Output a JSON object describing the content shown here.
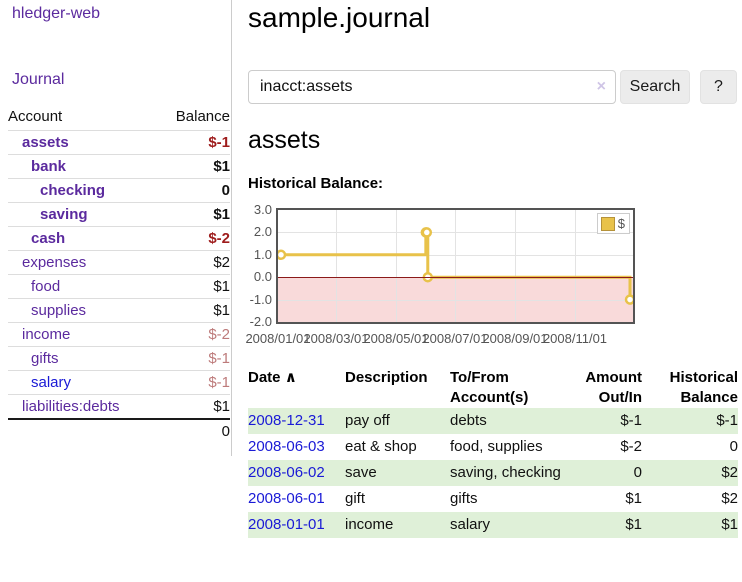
{
  "app": {
    "brand": "hledger-web"
  },
  "sidebar": {
    "journal_label": "Journal",
    "accounts_table": {
      "col_account": "Account",
      "col_balance": "Balance",
      "rows": [
        {
          "name": "assets",
          "balance": "$-1",
          "depth": 0,
          "bold": true,
          "link": "purple",
          "bal_style": "neg-strong"
        },
        {
          "name": "bank",
          "balance": "$1",
          "depth": 1,
          "bold": true,
          "link": "purple",
          "bal_style": "pos"
        },
        {
          "name": "checking",
          "balance": "0",
          "depth": 2,
          "bold": true,
          "link": "purple",
          "bal_style": "pos"
        },
        {
          "name": "saving",
          "balance": "$1",
          "depth": 2,
          "bold": true,
          "link": "purple",
          "bal_style": "pos"
        },
        {
          "name": "cash",
          "balance": "$-2",
          "depth": 1,
          "bold": true,
          "link": "purple",
          "bal_style": "neg-strong"
        },
        {
          "name": "expenses",
          "balance": "$2",
          "depth": 0,
          "bold": false,
          "link": "purple",
          "bal_style": "pos"
        },
        {
          "name": "food",
          "balance": "$1",
          "depth": 1,
          "bold": false,
          "link": "purple",
          "bal_style": "pos"
        },
        {
          "name": "supplies",
          "balance": "$1",
          "depth": 1,
          "bold": false,
          "link": "purple",
          "bal_style": "pos"
        },
        {
          "name": "income",
          "balance": "$-2",
          "depth": 0,
          "bold": false,
          "link": "purple",
          "bal_style": "neg-faded"
        },
        {
          "name": "gifts",
          "balance": "$-1",
          "depth": 1,
          "bold": false,
          "link": "purple",
          "bal_style": "neg-faded"
        },
        {
          "name": "salary",
          "balance": "$-1",
          "depth": 1,
          "bold": false,
          "link": "blue",
          "bal_style": "neg-faded"
        },
        {
          "name": "liabilities:debts",
          "balance": "$1",
          "depth": 0,
          "bold": false,
          "link": "purple",
          "bal_style": "pos",
          "last": true
        }
      ],
      "total": "0"
    }
  },
  "header": {
    "title": "sample.journal"
  },
  "search": {
    "value": "inacct:assets",
    "clear_icon": "×",
    "button_label": "Search",
    "help_label": "?"
  },
  "account_page": {
    "heading": "assets",
    "chart_title": "Historical Balance:"
  },
  "chart_data": {
    "type": "line",
    "style": "steps",
    "title": "Historical Balance",
    "x_range": [
      "2008-01-01",
      "2008-12-31"
    ],
    "ylim": [
      -2,
      3
    ],
    "y_ticks": [
      "3.0",
      "2.0",
      "1.0",
      "0.0",
      "-1.0",
      "-2.0"
    ],
    "x_ticks": [
      "2008/01/01",
      "2008/03/01",
      "2008/05/01",
      "2008/07/01",
      "2008/09/01",
      "2008/11/01"
    ],
    "grid": true,
    "legend_position": "top-right",
    "negative_fill": "#f9dada",
    "zero_line_color": "#8b1a1a",
    "series": [
      {
        "name": "$",
        "color": "#e8c24a",
        "points": [
          [
            "2008-01-01",
            1
          ],
          [
            "2008-06-01",
            2
          ],
          [
            "2008-06-02",
            2
          ],
          [
            "2008-06-03",
            0
          ],
          [
            "2008-12-31",
            -1
          ]
        ]
      }
    ]
  },
  "register_table": {
    "headers": {
      "date": "Date",
      "sort_icon": "∧",
      "description": "Description",
      "accounts": "To/From Account(s)",
      "amount": "Amount Out/In",
      "balance": "Historical Balance"
    },
    "rows": [
      {
        "date": "2008-12-31",
        "description": "pay off",
        "accounts": "debts",
        "amount": "$-1",
        "amount_neg": true,
        "balance": "$-1",
        "balance_neg": true
      },
      {
        "date": "2008-06-03",
        "description": "eat & shop",
        "accounts": "food, supplies",
        "amount": "$-2",
        "amount_neg": true,
        "balance": "0",
        "balance_neg": false
      },
      {
        "date": "2008-06-02",
        "description": "save",
        "accounts": "saving, checking",
        "amount": "0",
        "amount_neg": false,
        "balance": "$2",
        "balance_neg": false
      },
      {
        "date": "2008-06-01",
        "description": "gift",
        "accounts": "gifts",
        "amount": "$1",
        "amount_neg": false,
        "balance": "$2",
        "balance_neg": false
      },
      {
        "date": "2008-01-01",
        "description": "income",
        "accounts": "salary",
        "amount": "$1",
        "amount_neg": false,
        "balance": "$1",
        "balance_neg": false
      }
    ]
  },
  "colors": {
    "link_purple": "#5b2a9e",
    "link_blue": "#1a1ad6",
    "negative_strong": "#9e1c1c",
    "negative_faded": "#bd7a7a",
    "row_stripe_green": "#dff0d8",
    "chart_line": "#e8c24a",
    "chart_negative_fill": "#f9dada",
    "chart_zero_line": "#8b1a1a"
  }
}
